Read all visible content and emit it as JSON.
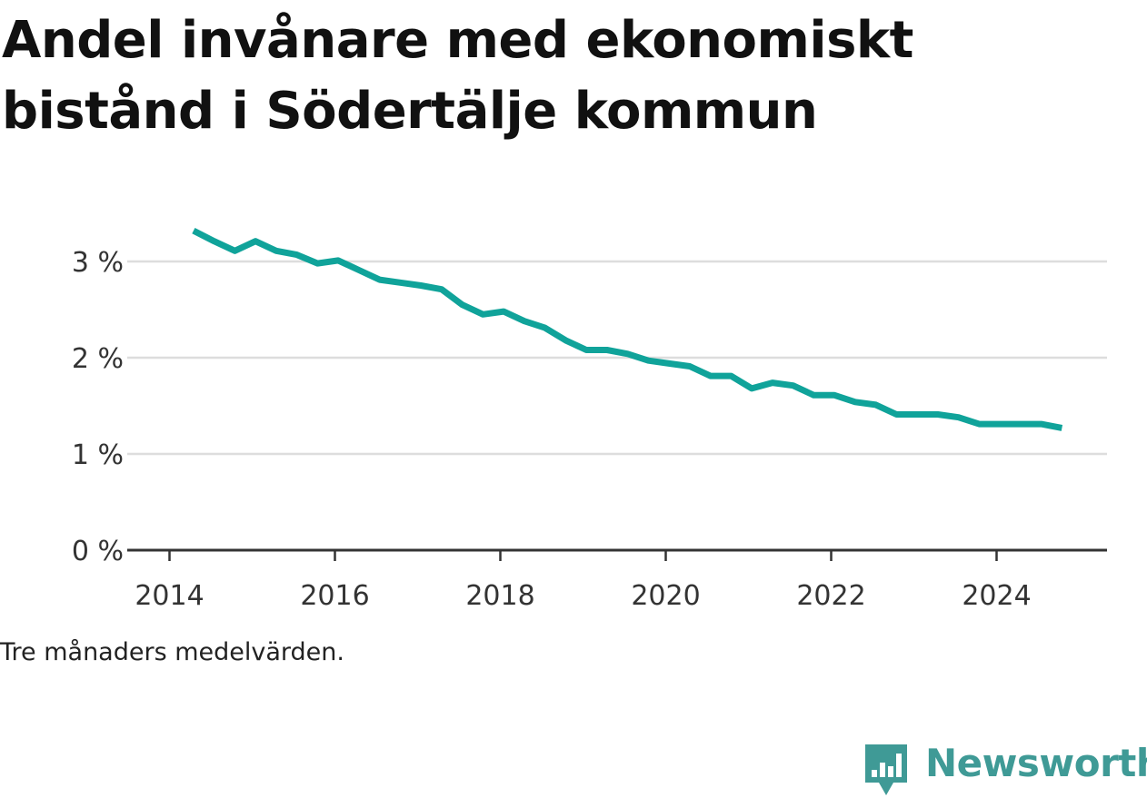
{
  "title": "Andel invånare med ekonomiskt bistånd i Södertälje kommun",
  "note": "Tre månaders medelvärden.",
  "logo": {
    "text": "Newsworthy",
    "icon": "bar-chart-speech-bubble-icon",
    "color": "#3f9a96"
  },
  "colors": {
    "line": "#10a39a",
    "grid": "#dddddd",
    "axis": "#333333"
  },
  "chart_data": {
    "type": "line",
    "title": "Andel invånare med ekonomiskt bistånd i Södertälje kommun",
    "xlabel": "",
    "ylabel": "",
    "xlim": [
      2013.8,
      2025.4
    ],
    "ylim": [
      0,
      3.3
    ],
    "y_ticks": [
      {
        "value": 0,
        "label": "0 %"
      },
      {
        "value": 1,
        "label": "1 %"
      },
      {
        "value": 2,
        "label": "2 %"
      },
      {
        "value": 3,
        "label": "3 %"
      }
    ],
    "x_ticks": [
      {
        "value": 2014,
        "label": "2014"
      },
      {
        "value": 2016,
        "label": "2016"
      },
      {
        "value": 2018,
        "label": "2018"
      },
      {
        "value": 2020,
        "label": "2020"
      },
      {
        "value": 2022,
        "label": "2022"
      },
      {
        "value": 2024,
        "label": "2024"
      }
    ],
    "grid": true,
    "legend": "none",
    "series": [
      {
        "x": [
          2014.29,
          2014.54,
          2014.79,
          2015.04,
          2015.29,
          2015.54,
          2015.79,
          2016.04,
          2016.29,
          2016.54,
          2016.79,
          2017.04,
          2017.29,
          2017.54,
          2017.79,
          2018.04,
          2018.29,
          2018.54,
          2018.79,
          2019.04,
          2019.29,
          2019.54,
          2019.79,
          2020.04,
          2020.29,
          2020.54,
          2020.79,
          2021.04,
          2021.29,
          2021.54,
          2021.79,
          2022.04,
          2022.29,
          2022.54,
          2022.79,
          2023.04,
          2023.29,
          2023.54,
          2023.79,
          2024.04,
          2024.29,
          2024.54,
          2024.79
        ],
        "values": [
          3.32,
          3.21,
          3.11,
          3.21,
          3.11,
          3.07,
          2.98,
          3.01,
          2.91,
          2.81,
          2.78,
          2.75,
          2.71,
          2.55,
          2.45,
          2.48,
          2.38,
          2.31,
          2.18,
          2.08,
          2.08,
          2.04,
          1.97,
          1.94,
          1.91,
          1.81,
          1.81,
          1.68,
          1.74,
          1.71,
          1.61,
          1.61,
          1.54,
          1.51,
          1.41,
          1.41,
          1.41,
          1.38,
          1.31,
          1.31,
          1.31,
          1.31,
          1.27
        ]
      }
    ]
  }
}
